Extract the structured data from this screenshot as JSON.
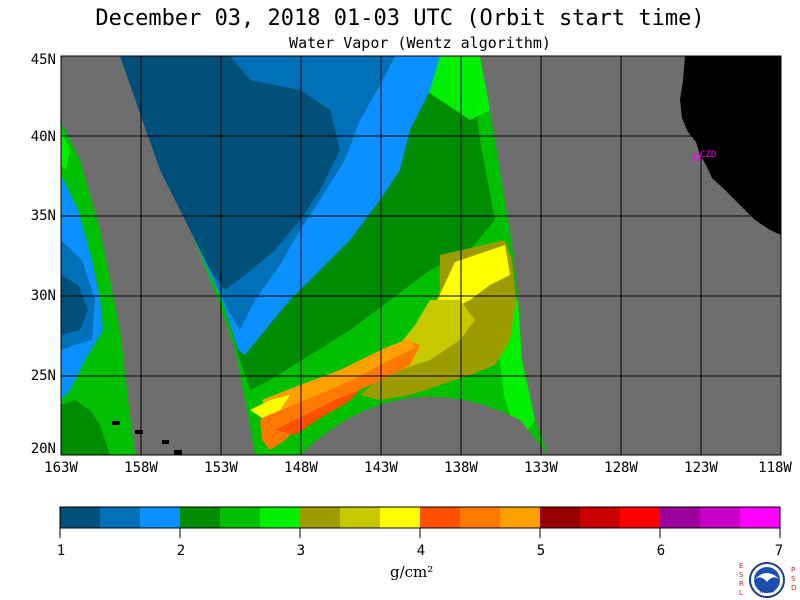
{
  "title": "December 03, 2018  01-03 UTC  (Orbit start time)",
  "subtitle": "Water Vapor (Wentz algorithm)",
  "map": {
    "lat_labels": [
      "45N",
      "40N",
      "35N",
      "30N",
      "25N",
      "20N"
    ],
    "lon_labels": [
      "163W",
      "158W",
      "153W",
      "148W",
      "143W",
      "138W",
      "133W",
      "128W",
      "123W",
      "118W"
    ],
    "lat_range": [
      20,
      45
    ],
    "lon_range": [
      -163,
      -118
    ],
    "station_label": "CZD",
    "colors": {
      "no_data": "#6e6e6e",
      "land": "#000000",
      "grid": "#000000",
      "station": "#ff00ff"
    }
  },
  "colorbar": {
    "colors": [
      "#00507a",
      "#0070b8",
      "#0a90ff",
      "#008c00",
      "#00c000",
      "#00f000",
      "#9c9c00",
      "#c8c800",
      "#ffff00",
      "#ff5000",
      "#ff7800",
      "#ffa000",
      "#960000",
      "#c80000",
      "#ff0000",
      "#9c009c",
      "#c800c8",
      "#ff00ff"
    ],
    "tick_labels": [
      "1",
      "2",
      "3",
      "4",
      "5",
      "6",
      "7"
    ],
    "units_label": "g/cm²"
  },
  "logo": {
    "left_letters": [
      "E",
      "S",
      "R",
      "L"
    ],
    "right_letters": [
      "P",
      "S",
      "D"
    ],
    "center_text": "NOAA"
  }
}
